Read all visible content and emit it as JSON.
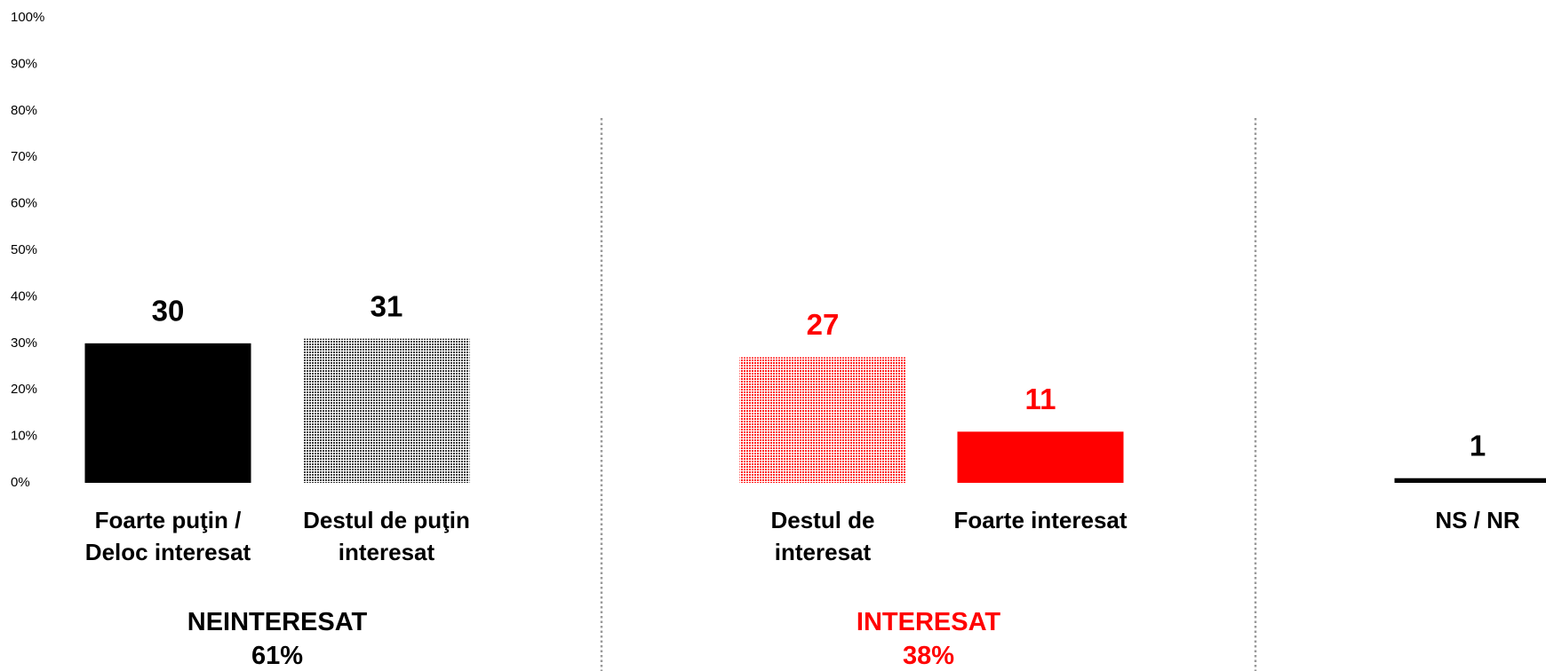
{
  "chart_data": {
    "type": "bar",
    "categories": [
      "Foarte puţin / Deloc interesat",
      "Destul de puţin interesat",
      "Destul de interesat",
      "Foarte interesat",
      "NS / NR"
    ],
    "values": [
      30,
      31,
      27,
      11,
      1
    ],
    "colors": [
      "#000000",
      "#3a3a3a",
      "#ff2020",
      "#ff0000",
      "#000000"
    ],
    "label_colors": [
      "#000000",
      "#000000",
      "#ff0000",
      "#ff0000",
      "#000000"
    ],
    "patterns": [
      "solid",
      "dotted",
      "dotted",
      "solid",
      "solid"
    ],
    "ylim": [
      0,
      100
    ],
    "yticks": [
      {
        "value": 0,
        "label": "0%"
      },
      {
        "value": 10,
        "label": "10%"
      },
      {
        "value": 20,
        "label": "20%"
      },
      {
        "value": 30,
        "label": "30%"
      },
      {
        "value": 40,
        "label": "40%"
      },
      {
        "value": 50,
        "label": "50%"
      },
      {
        "value": 60,
        "label": "60%"
      },
      {
        "value": 70,
        "label": "70%"
      },
      {
        "value": 80,
        "label": "80%"
      },
      {
        "value": 90,
        "label": "90%"
      },
      {
        "value": 100,
        "label": "100%"
      }
    ],
    "groups": [
      {
        "name": "NEINTERESAT",
        "label": "61%",
        "color": "#000000"
      },
      {
        "name": "INTERESAT",
        "label": "38%",
        "color": "#ff0000"
      }
    ]
  }
}
